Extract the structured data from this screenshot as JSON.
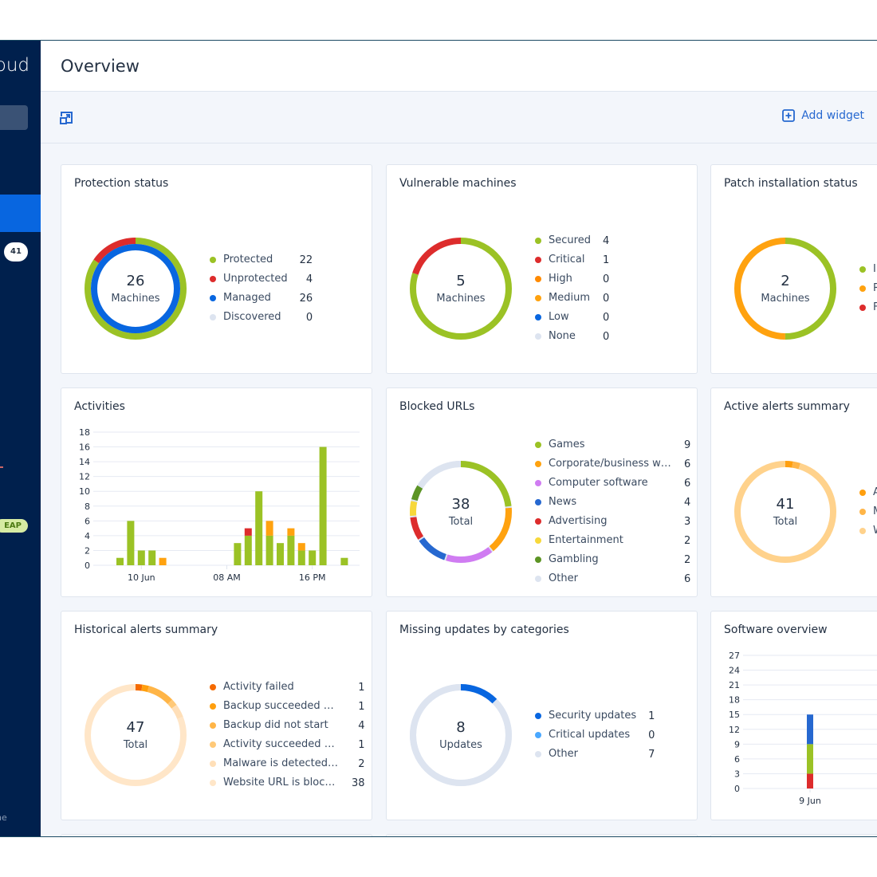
{
  "sidebar": {
    "brand": "oud",
    "badge": "41",
    "eap": "EAP",
    "footer": "ine"
  },
  "header": {
    "title": "Overview"
  },
  "toolbar": {
    "add_widget": "Add widget"
  },
  "widgets": {
    "protection": {
      "title": "Protection status",
      "total": "26",
      "unit": "Machines",
      "legend": [
        {
          "label": "Protected",
          "value": "22",
          "color": "#9bc225"
        },
        {
          "label": "Unprotected",
          "value": "4",
          "color": "#dd2c2c"
        },
        {
          "label": "Managed",
          "value": "26",
          "color": "#0866e0"
        },
        {
          "label": "Discovered",
          "value": "0",
          "color": "#dde4f0"
        }
      ]
    },
    "vulnerable": {
      "title": "Vulnerable machines",
      "total": "5",
      "unit": "Machines",
      "legend": [
        {
          "label": "Secured",
          "value": "4",
          "color": "#9bc225"
        },
        {
          "label": "Critical",
          "value": "1",
          "color": "#dd2c2c"
        },
        {
          "label": "High",
          "value": "0",
          "color": "#ff8a00"
        },
        {
          "label": "Medium",
          "value": "0",
          "color": "#ffa20f"
        },
        {
          "label": "Low",
          "value": "0",
          "color": "#0866e0"
        },
        {
          "label": "None",
          "value": "0",
          "color": "#dde4f0"
        }
      ]
    },
    "patch": {
      "title": "Patch installation status",
      "total": "2",
      "unit": "Machines",
      "ring_fractions": [
        0.5,
        0.5
      ],
      "legend": [
        {
          "label": "In",
          "color": "#9bc225"
        },
        {
          "label": "R",
          "color": "#ffa20f"
        },
        {
          "label": "F",
          "color": "#dd2c2c"
        }
      ]
    },
    "activities": {
      "title": "Activities",
      "chart_data": {
        "type": "bar",
        "stacked": true,
        "ylim": [
          0,
          18
        ],
        "yticks": [
          0,
          2,
          4,
          6,
          8,
          10,
          12,
          14,
          16,
          18
        ],
        "xticks": [
          {
            "label": "10 Jun",
            "day": "10 Jun",
            "hour": 0
          },
          {
            "label": "08 AM",
            "day": "10 Jun",
            "hour": 8
          },
          {
            "label": "16 PM",
            "day": "10 Jun",
            "hour": 16
          }
        ],
        "series_colors": [
          "#9bc225",
          "#ffa20f",
          "#dd2c2c"
        ],
        "bars": [
          {
            "day": "9 Jun",
            "hour": 22,
            "values": [
              1,
              0,
              0
            ]
          },
          {
            "day": "9 Jun",
            "hour": 23,
            "values": [
              6,
              0,
              0
            ]
          },
          {
            "day": "10 Jun",
            "hour": 0,
            "values": [
              2,
              0,
              0
            ]
          },
          {
            "day": "10 Jun",
            "hour": 1,
            "values": [
              2,
              0,
              0
            ]
          },
          {
            "day": "10 Jun",
            "hour": 2,
            "values": [
              0,
              1,
              0
            ]
          },
          {
            "day": "10 Jun",
            "hour": 9,
            "values": [
              3,
              0,
              0
            ]
          },
          {
            "day": "10 Jun",
            "hour": 10,
            "values": [
              4,
              0,
              1
            ]
          },
          {
            "day": "10 Jun",
            "hour": 11,
            "values": [
              10,
              0,
              0
            ]
          },
          {
            "day": "10 Jun",
            "hour": 12,
            "values": [
              4,
              2,
              0
            ]
          },
          {
            "day": "10 Jun",
            "hour": 13,
            "values": [
              3,
              0,
              0
            ]
          },
          {
            "day": "10 Jun",
            "hour": 14,
            "values": [
              4,
              1,
              0
            ]
          },
          {
            "day": "10 Jun",
            "hour": 15,
            "values": [
              2,
              1,
              0
            ]
          },
          {
            "day": "10 Jun",
            "hour": 16,
            "values": [
              2,
              0,
              0
            ]
          },
          {
            "day": "10 Jun",
            "hour": 17,
            "values": [
              16,
              0,
              0
            ]
          },
          {
            "day": "10 Jun",
            "hour": 19,
            "values": [
              1,
              0,
              0
            ]
          }
        ]
      }
    },
    "blocked": {
      "title": "Blocked URLs",
      "total": "38",
      "unit": "Total",
      "legend": [
        {
          "label": "Games",
          "value": "9",
          "color": "#9bc225"
        },
        {
          "label": "Corporate/business websites",
          "value": "6",
          "color": "#ffa20f"
        },
        {
          "label": "Computer software",
          "value": "6",
          "color": "#d07cf2"
        },
        {
          "label": "News",
          "value": "4",
          "color": "#2668d0"
        },
        {
          "label": "Advertising",
          "value": "3",
          "color": "#dd2c2c"
        },
        {
          "label": "Entertainment",
          "value": "2",
          "color": "#f7d83b"
        },
        {
          "label": "Gambling",
          "value": "2",
          "color": "#5c9424"
        },
        {
          "label": "Other",
          "value": "6",
          "color": "#dde4f0"
        }
      ]
    },
    "active_alerts": {
      "title": "Active alerts summary",
      "total": "41",
      "unit": "Total",
      "ring_fractions": [
        0.024,
        0.024,
        0.952
      ],
      "legend": [
        {
          "label": "A",
          "color": "#ff9f0e"
        },
        {
          "label": "M",
          "color": "#ffb547"
        },
        {
          "label": "W",
          "color": "#ffd28c"
        }
      ]
    },
    "historical": {
      "title": "Historical alerts summary",
      "total": "47",
      "unit": "Total",
      "legend": [
        {
          "label": "Activity failed",
          "value": "1",
          "color": "#f56a00"
        },
        {
          "label": "Backup succeeded with warnings",
          "value": "1",
          "color": "#ff9f0e"
        },
        {
          "label": "Backup did not start",
          "value": "4",
          "color": "#ffb547"
        },
        {
          "label": "Activity succeeded with warnings",
          "value": "1",
          "color": "#ffc978"
        },
        {
          "label": "Malware is detected and blocked",
          "value": "2",
          "color": "#ffdfb8"
        },
        {
          "label": "Website URL is blocked",
          "value": "38",
          "color": "#ffe6c8"
        }
      ]
    },
    "missing": {
      "title": "Missing updates by categories",
      "total": "8",
      "unit": "Updates",
      "legend": [
        {
          "label": "Security updates",
          "value": "1",
          "color": "#0866e0"
        },
        {
          "label": "Critical updates",
          "value": "0",
          "color": "#4aa8ff"
        },
        {
          "label": "Other",
          "value": "7",
          "color": "#dde4f0"
        }
      ]
    },
    "software": {
      "title": "Software overview",
      "chart_data": {
        "type": "bar",
        "stacked": true,
        "ylim": [
          0,
          27
        ],
        "yticks": [
          0,
          3,
          6,
          9,
          12,
          15,
          18,
          21,
          24,
          27
        ],
        "categories": [
          "9 Jun"
        ],
        "series_colors": [
          "#dd2c2c",
          "#9bc225",
          "#2668d0"
        ],
        "series": [
          {
            "values": [
              3
            ]
          },
          {
            "values": [
              6
            ]
          },
          {
            "values": [
              6
            ]
          }
        ]
      }
    }
  }
}
